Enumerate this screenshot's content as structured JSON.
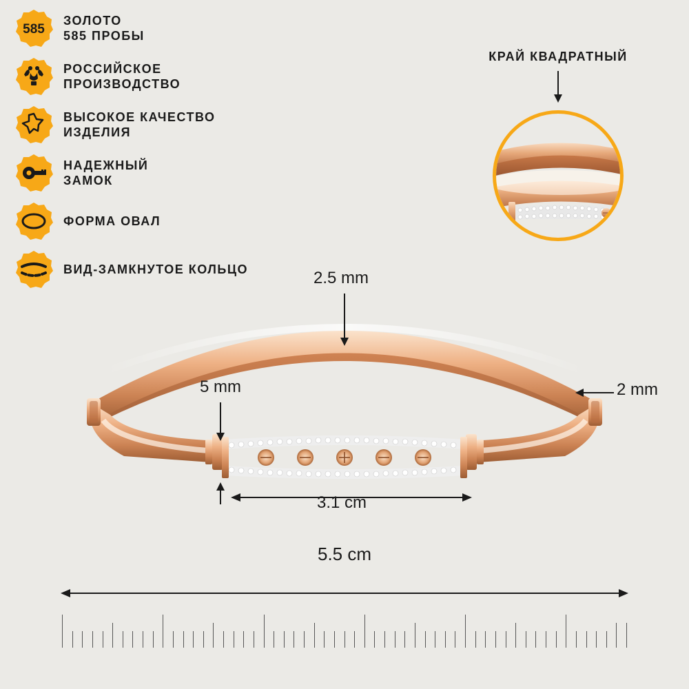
{
  "colors": {
    "badge": "#f7a817",
    "badge_dark": "#1a1a1a",
    "gold_light": "#f4c8a0",
    "gold_mid": "#d89466",
    "gold_dark": "#a05d35",
    "gold_inner": "#c77848",
    "silver_light": "#f5f5f5",
    "silver_dark": "#c8c8c8",
    "text": "#1a1a1a",
    "bg": "#ebeae6"
  },
  "features": [
    {
      "icon": "585",
      "line1": "ЗОЛОТО",
      "line2": "585 ПРОБЫ"
    },
    {
      "icon": "eagle",
      "line1": "РОССИЙСКОЕ",
      "line2": "ПРОИЗВОДСТВО"
    },
    {
      "icon": "star",
      "line1": "ВЫСОКОЕ КАЧЕСТВО",
      "line2": "ИЗДЕЛИЯ"
    },
    {
      "icon": "lock",
      "line1": "НАДЕЖНЫЙ",
      "line2": "ЗАМОК"
    },
    {
      "icon": "oval",
      "line1": "ФОРМА ОВАЛ",
      "line2": ""
    },
    {
      "icon": "ring",
      "line1": "ВИД-ЗАМКНУТОЕ КОЛЬЦО",
      "line2": ""
    }
  ],
  "detail": {
    "label": "КРАЙ КВАДРАТНЫЙ"
  },
  "dimensions": {
    "band_top": "2.5 mm",
    "plate_height": "5 mm",
    "plate_width": "3.1 cm",
    "side_thickness": "2 mm",
    "total_width": "5.5 cm"
  },
  "ruler": {
    "major_count": 6,
    "subdivisions": 10
  }
}
